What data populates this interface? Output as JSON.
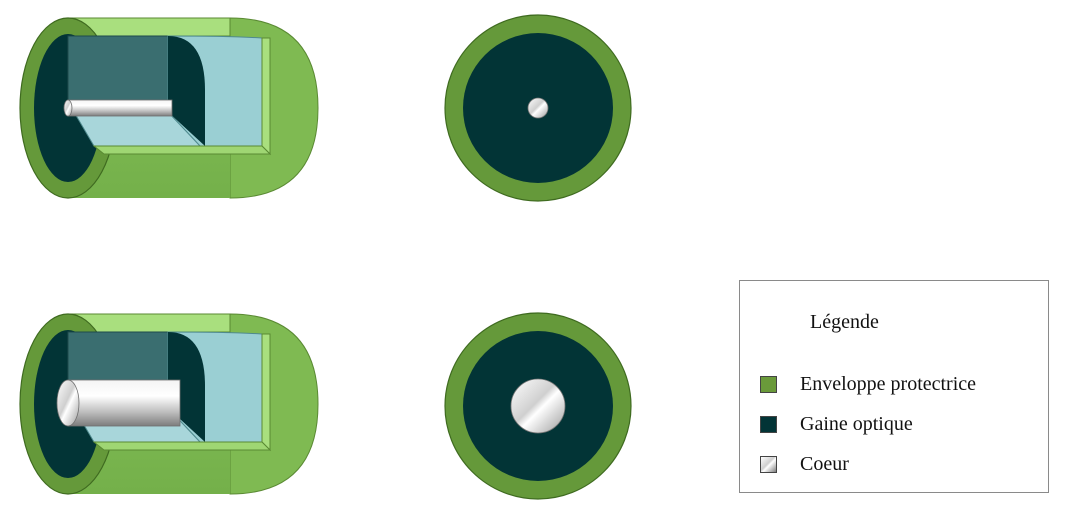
{
  "legend": {
    "title": "Légende",
    "items": [
      {
        "id": "enveloppe",
        "label": "Enveloppe protectrice",
        "color": "#6a9a3a"
      },
      {
        "id": "gaine",
        "label": "Gaine optique",
        "color": "#023436"
      },
      {
        "id": "coeur",
        "label": "Coeur",
        "color": "#bdbdbd"
      }
    ]
  },
  "colors": {
    "jacket_outer": "#7fba52",
    "jacket_light": "#a9df7e",
    "jacket_ring": "#65993a",
    "cladding_dark": "#023436",
    "cladding_mid": "#3a6e70",
    "cladding_light": "#9acfd3",
    "cladding_floor": "#a8d6da",
    "core_light": "#f2f2f2",
    "core_dark": "#8a8a8a"
  },
  "fibers": [
    {
      "id": "fiber-thin-core",
      "core": "thin"
    },
    {
      "id": "fiber-thick-core",
      "core": "thick"
    }
  ]
}
